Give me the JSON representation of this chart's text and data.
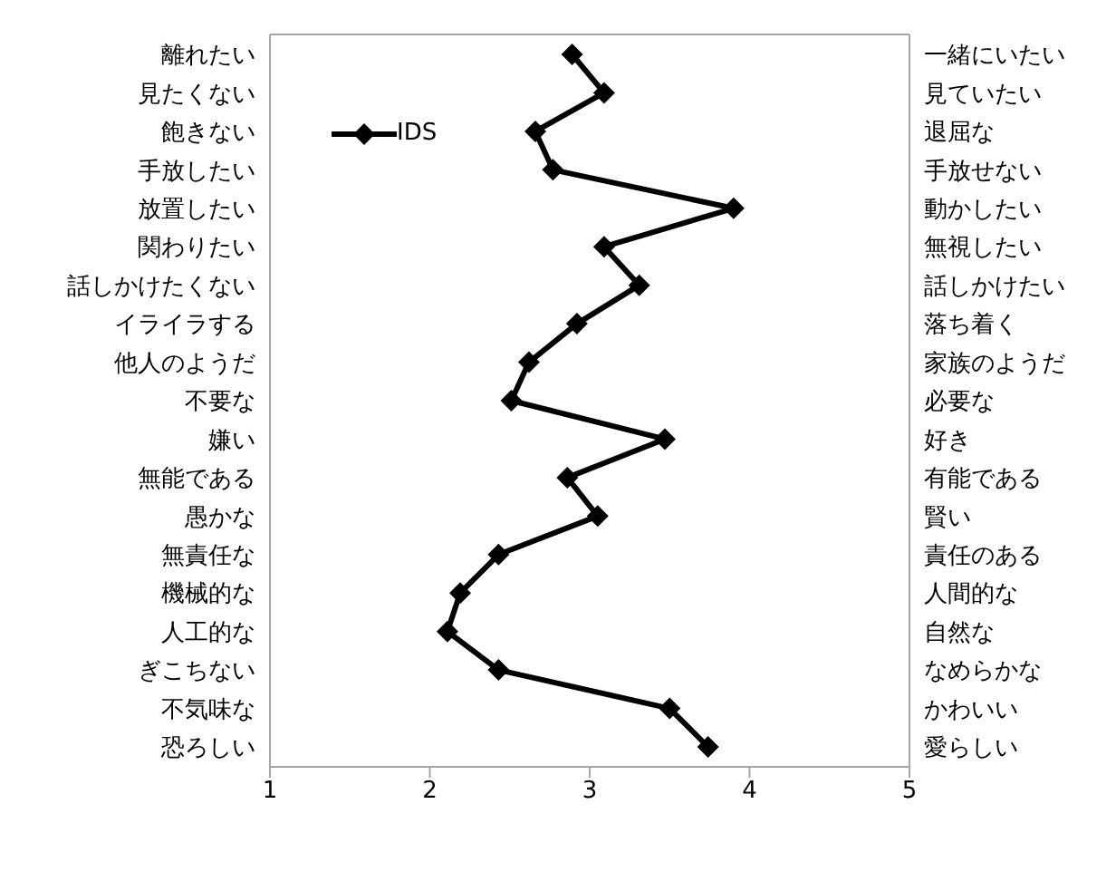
{
  "chart_data": {
    "type": "line",
    "categories": [
      "離れたい",
      "見たくない",
      "飽きない",
      "手放したい",
      "放置したい",
      "関わりたい",
      "話しかけたくない",
      "イライラする",
      "他人のようだ",
      "不要な",
      "嫌い",
      "無能である",
      "愚かな",
      "無責任な",
      "機械的な",
      "人工的な",
      "ぎこちない",
      "不気味な",
      "恐ろしい"
    ],
    "y2_categories": [
      "一緒にいたい",
      "見ていたい",
      "退屈な",
      "手放せない",
      "動かしたい",
      "無視したい",
      "話しかけたい",
      "落ち着く",
      "家族のようだ",
      "必要な",
      "好き",
      "有能である",
      "賢い",
      "責任のある",
      "人間的な",
      "自然な",
      "なめらかな",
      "かわいい",
      "愛らしい"
    ],
    "orientation": "horizontal",
    "series": [
      {
        "name": "IDS",
        "color": "#000000",
        "values": [
          2.89,
          3.09,
          2.66,
          2.77,
          3.9,
          3.09,
          3.31,
          2.92,
          2.62,
          2.51,
          3.47,
          2.86,
          3.05,
          2.43,
          2.19,
          2.11,
          2.43,
          3.5,
          3.74
        ]
      }
    ],
    "xlim": [
      1,
      5
    ],
    "xticks": [
      1,
      2,
      3,
      4,
      5
    ],
    "marker": "diamond",
    "legend": "top left"
  }
}
